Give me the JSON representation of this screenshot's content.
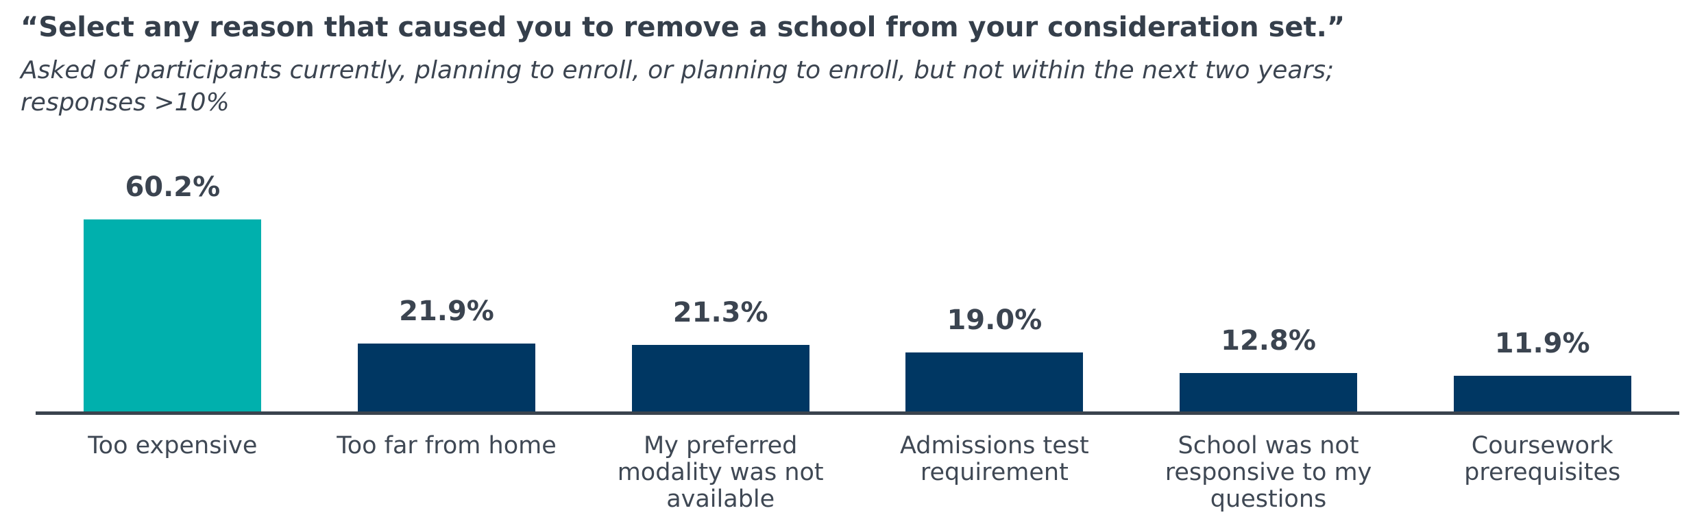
{
  "header": {
    "title": "“Select any reason that caused you to remove a school from your consideration set.”",
    "subtitle": "Asked of participants currently, planning to enroll, or planning to enroll, but not within the next two years;\nresponses >10%"
  },
  "chart_data": {
    "type": "bar",
    "title": "“Select any reason that caused you to remove a school from your consideration set.”",
    "subtitle": "Asked of participants currently, planning to enroll, or planning to enroll, but not within the next two years; responses >10%",
    "categories": [
      "Too expensive",
      "Too far from home",
      "My preferred modality was not available",
      "Admissions test requirement",
      "School was not responsive to my questions",
      "Coursework prerequisites"
    ],
    "values": [
      60.2,
      21.9,
      21.3,
      19.0,
      12.8,
      11.9
    ],
    "value_labels": [
      "60.2%",
      "21.9%",
      "21.3%",
      "19.0%",
      "12.8%",
      "11.9%"
    ],
    "bars": [
      {
        "label": "Too expensive",
        "value": 60.2,
        "display": "60.2%",
        "color": "#00b0ad"
      },
      {
        "label": "Too far from home",
        "value": 21.9,
        "display": "21.9%",
        "color": "#003763"
      },
      {
        "label": "My preferred\nmodality was not\navailable",
        "value": 21.3,
        "display": "21.3%",
        "color": "#003763"
      },
      {
        "label": "Admissions test\nrequirement",
        "value": 19.0,
        "display": "19.0%",
        "color": "#003763"
      },
      {
        "label": "School was not\nresponsive to my\nquestions",
        "value": 12.8,
        "display": "12.8%",
        "color": "#003763"
      },
      {
        "label": "Coursework\nprerequisites",
        "value": 11.9,
        "display": "11.9%",
        "color": "#003763"
      }
    ],
    "xlabel": "",
    "ylabel": "",
    "ylim": [
      0,
      65
    ],
    "grid": false,
    "legend": false,
    "data_labels": true,
    "colors": {
      "highlight_bar": "#00b0ad",
      "default_bar": "#003763",
      "bar_border": "#ffffff",
      "axis_line": "#3a434e",
      "text": "#3b4450"
    }
  }
}
